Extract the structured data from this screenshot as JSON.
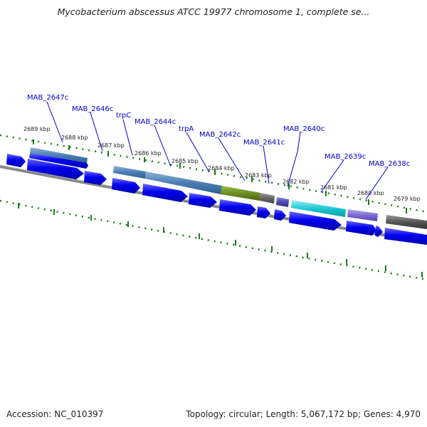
{
  "title": "Mycobacterium abscessus ATCC 19977 chromosome 1, complete se...",
  "footer": {
    "accession": "Accession: NC_010397",
    "summary": "Topology: circular; Length: 5,067,172 bp; Genes: 4,970"
  },
  "ticks": [
    {
      "label": "2689 kbp"
    },
    {
      "label": "2688 kbp"
    },
    {
      "label": "2687 kbp"
    },
    {
      "label": "2686 kbp"
    },
    {
      "label": "2685 kbp"
    },
    {
      "label": "2684 kbp"
    },
    {
      "label": "2683 kbp"
    },
    {
      "label": "2682 kbp"
    },
    {
      "label": "2681 kbp"
    },
    {
      "label": "2680 kbp"
    },
    {
      "label": "2679 kbp"
    }
  ],
  "genes": [
    {
      "name": "MAB_2647c"
    },
    {
      "name": "MAB_2646c"
    },
    {
      "name": "trpC"
    },
    {
      "name": "MAB_2644c"
    },
    {
      "name": "trpA"
    },
    {
      "name": "MAB_2642c"
    },
    {
      "name": "MAB_2641c"
    },
    {
      "name": "MAB_2640c"
    },
    {
      "name": "MAB_2639c"
    },
    {
      "name": "MAB_2638c"
    }
  ],
  "colors": {
    "arrow": "#0000ee",
    "tick": "#1a7a1a",
    "backbone": "#888888",
    "label": "#0000cc",
    "feature_steelblue": "#4a7fb5",
    "feature_olive": "#6b8e23",
    "feature_gray": "#666666",
    "feature_indigo": "#4b4bae",
    "feature_cyan": "#1ec8d2",
    "feature_lavender": "#7b6bd6",
    "feature_dark": "#555555"
  }
}
